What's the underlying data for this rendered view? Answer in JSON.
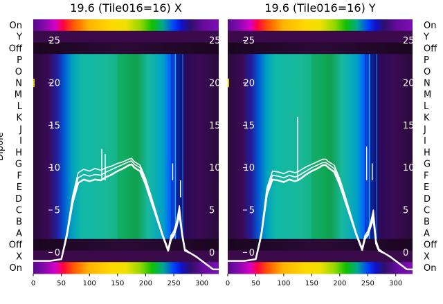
{
  "chart_data": [
    {
      "type": "heatmap",
      "title": "19.6 (Tile016=16) X",
      "ylabel": "Dipole",
      "xlim": [
        0,
        330
      ],
      "x_ticks": [
        0,
        50,
        100,
        150,
        200,
        250,
        300
      ],
      "y_tick_labels": [
        "On",
        "Y",
        "Off",
        "P",
        "O",
        "N",
        "M",
        "L",
        "K",
        "J",
        "I",
        "H",
        "G",
        "F",
        "E",
        "D",
        "C",
        "B",
        "A",
        "Off",
        "X",
        "On"
      ],
      "overlay_ylim": [
        -2.5,
        27.5
      ],
      "overlay_ticks": [
        0,
        5,
        10,
        15,
        20,
        25
      ],
      "overlay_series": [
        {
          "x": [
            0,
            30,
            50,
            60,
            70,
            80,
            90,
            100,
            110,
            120,
            130,
            140,
            150,
            160,
            170,
            175,
            180,
            190,
            200,
            210,
            220,
            230,
            240,
            245,
            250,
            255,
            260,
            265,
            270,
            280,
            290,
            300,
            310,
            320,
            330
          ],
          "y": [
            -1.0,
            -1.0,
            -0.8,
            2.0,
            5.8,
            8.2,
            8.6,
            8.4,
            8.6,
            8.5,
            8.9,
            9.2,
            9.6,
            9.9,
            10.3,
            10.4,
            10.0,
            9.6,
            8.0,
            6.0,
            4.0,
            2.0,
            0.2,
            1.5,
            2.0,
            3.0,
            4.5,
            2.0,
            0.2,
            -0.1,
            -0.5,
            -1.0,
            -1.5,
            -2.0,
            -2.0
          ]
        },
        {
          "x": [
            0,
            30,
            50,
            60,
            70,
            80,
            90,
            100,
            110,
            120,
            130,
            140,
            150,
            160,
            170,
            175,
            180,
            190,
            200,
            210,
            220,
            230,
            240,
            245,
            250,
            255,
            260,
            265,
            270,
            280,
            290,
            300,
            310,
            320,
            330
          ],
          "y": [
            -1.0,
            -1.0,
            -0.8,
            2.2,
            6.2,
            8.8,
            9.2,
            9.0,
            9.2,
            9.1,
            9.5,
            9.8,
            10.1,
            10.4,
            10.7,
            10.8,
            10.4,
            10.0,
            8.4,
            6.3,
            4.2,
            2.1,
            0.3,
            1.8,
            2.2,
            3.3,
            5.0,
            2.2,
            0.3,
            -0.1,
            -0.5,
            -1.0,
            -1.5,
            -2.0,
            -2.0
          ]
        },
        {
          "x": [
            0,
            30,
            50,
            60,
            70,
            80,
            90,
            100,
            110,
            120,
            130,
            140,
            150,
            160,
            170,
            175,
            180,
            190,
            200,
            210,
            220,
            230,
            240,
            245,
            250,
            255,
            260,
            265,
            270,
            280,
            290,
            300,
            310,
            320,
            330
          ],
          "y": [
            -1.0,
            -1.0,
            -0.8,
            2.4,
            6.6,
            9.4,
            9.8,
            9.6,
            9.9,
            9.7,
            10.0,
            10.2,
            10.5,
            10.7,
            11.0,
            11.1,
            10.7,
            10.3,
            8.7,
            6.6,
            4.4,
            2.2,
            0.4,
            2.0,
            2.5,
            3.6,
            5.5,
            2.4,
            0.4,
            -0.1,
            -0.5,
            -1.0,
            -1.5,
            -2.0,
            -2.0
          ]
        }
      ]
    },
    {
      "type": "heatmap",
      "title": "19.6 (Tile016=16) Y",
      "ylabel": "",
      "xlim": [
        0,
        330
      ],
      "x_ticks": [
        0,
        50,
        100,
        150,
        200,
        250,
        300
      ],
      "y_tick_labels": [
        "On",
        "Y",
        "Off",
        "P",
        "O",
        "N",
        "M",
        "L",
        "K",
        "J",
        "I",
        "H",
        "G",
        "F",
        "E",
        "D",
        "C",
        "B",
        "A",
        "Off",
        "X",
        "On"
      ],
      "overlay_ylim": [
        -2.5,
        27.5
      ],
      "overlay_ticks": [
        0,
        5,
        10,
        15,
        20,
        25
      ],
      "overlay_series": [
        {
          "x": [
            0,
            30,
            50,
            60,
            70,
            80,
            90,
            100,
            110,
            120,
            125,
            130,
            140,
            150,
            160,
            170,
            175,
            180,
            190,
            200,
            210,
            220,
            230,
            240,
            245,
            250,
            255,
            260,
            265,
            270,
            280,
            290,
            300,
            310,
            320,
            330
          ],
          "y": [
            -1.0,
            -1.0,
            -0.8,
            2.0,
            6.8,
            8.6,
            8.5,
            8.3,
            8.6,
            8.4,
            8.5,
            8.7,
            9.2,
            9.6,
            9.9,
            10.3,
            10.3,
            10.0,
            9.5,
            8.0,
            6.0,
            4.0,
            2.0,
            0.3,
            1.6,
            2.0,
            3.0,
            4.0,
            1.0,
            0.2,
            -0.1,
            -0.5,
            -1.0,
            -1.5,
            -2.0,
            -2.0
          ]
        },
        {
          "x": [
            0,
            30,
            50,
            60,
            70,
            80,
            90,
            100,
            110,
            120,
            125,
            130,
            140,
            150,
            160,
            170,
            175,
            180,
            190,
            200,
            210,
            220,
            230,
            240,
            245,
            250,
            255,
            260,
            265,
            270,
            280,
            290,
            300,
            310,
            320,
            330
          ],
          "y": [
            -1.0,
            -1.0,
            -0.8,
            2.2,
            7.2,
            9.1,
            9.0,
            8.8,
            9.1,
            8.9,
            9.0,
            9.2,
            9.6,
            10.0,
            10.3,
            10.6,
            10.6,
            10.4,
            9.9,
            8.4,
            6.3,
            4.2,
            2.1,
            0.4,
            1.8,
            2.2,
            3.2,
            4.5,
            1.2,
            0.3,
            -0.1,
            -0.5,
            -1.0,
            -1.5,
            -2.0,
            -2.0
          ]
        },
        {
          "x": [
            0,
            30,
            50,
            60,
            70,
            80,
            90,
            100,
            110,
            120,
            125,
            130,
            140,
            150,
            160,
            170,
            175,
            180,
            190,
            200,
            210,
            220,
            230,
            240,
            245,
            250,
            255,
            260,
            265,
            270,
            280,
            290,
            300,
            310,
            320,
            330
          ],
          "y": [
            -1.0,
            -1.0,
            -0.8,
            2.4,
            7.6,
            9.6,
            9.5,
            9.3,
            9.6,
            9.4,
            9.5,
            9.7,
            10.1,
            10.4,
            10.7,
            11.0,
            11.0,
            10.7,
            10.3,
            8.7,
            6.6,
            4.4,
            2.2,
            0.5,
            2.0,
            2.5,
            3.5,
            5.0,
            1.4,
            0.4,
            -0.1,
            -0.5,
            -1.0,
            -1.5,
            -2.0,
            -2.0
          ]
        }
      ]
    }
  ]
}
